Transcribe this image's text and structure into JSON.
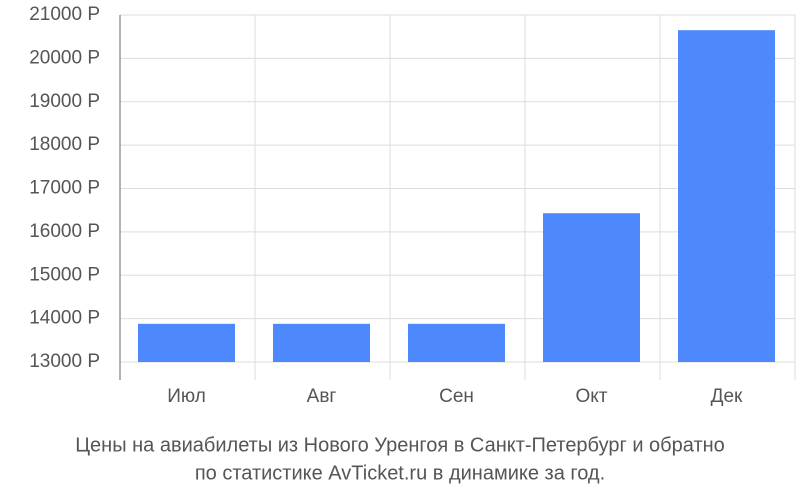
{
  "chart_data": {
    "type": "bar",
    "title": [
      "Цены на авиабилеты из Нового Уренгоя в Санкт-Петербург и обратно",
      "по статистике AvTicket.ru в динамике за год."
    ],
    "categories": [
      "Июл",
      "Авг",
      "Сен",
      "Окт",
      "Дек"
    ],
    "values": [
      13880,
      13880,
      13880,
      16430,
      20650
    ],
    "color": "#4d88fc",
    "ylim": [
      13000,
      21000
    ],
    "yticks": [
      {
        "value": 13000,
        "label": "13000 Р"
      },
      {
        "value": 14000,
        "label": "14000 Р"
      },
      {
        "value": 15000,
        "label": "15000 Р"
      },
      {
        "value": 16000,
        "label": "16000 Р"
      },
      {
        "value": 17000,
        "label": "17000 Р"
      },
      {
        "value": 18000,
        "label": "18000 Р"
      },
      {
        "value": 19000,
        "label": "19000 Р"
      },
      {
        "value": 20000,
        "label": "20000 Р"
      },
      {
        "value": 21000,
        "label": "21000 Р"
      }
    ],
    "grid": true
  }
}
